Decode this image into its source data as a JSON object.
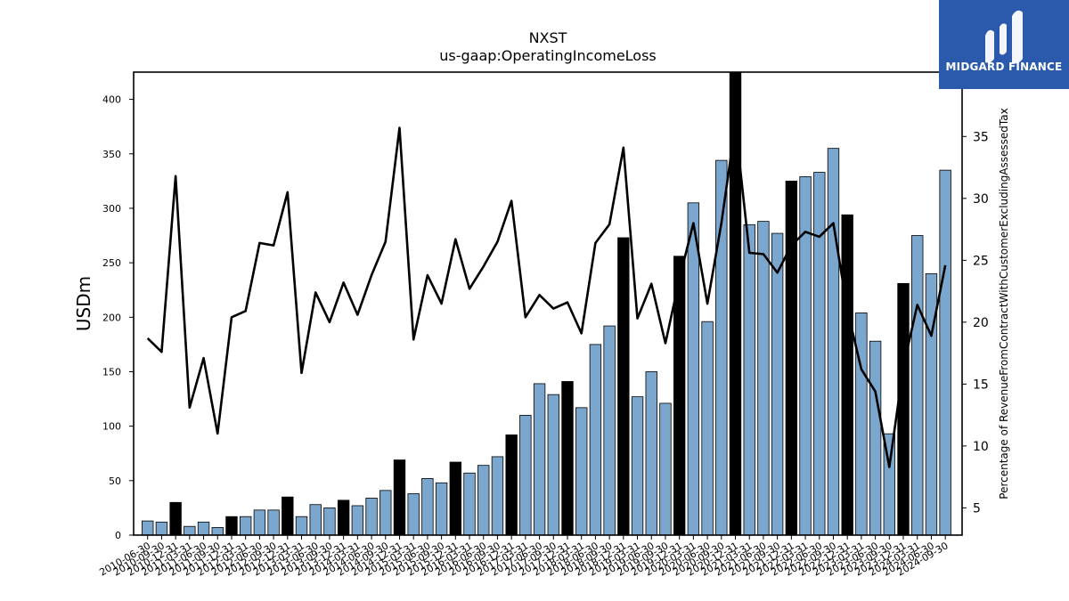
{
  "brand": {
    "name": "MIDGARD FINANCE",
    "bg_color": "#2b5aad"
  },
  "chart_data": {
    "type": "bar",
    "title": "NXST",
    "subtitle": "us-gaap:OperatingIncomeLoss",
    "ylabel": "USDm",
    "y2label": "Percentage of RevenueFromContractWithCustomerExcludingAssessedTax",
    "ylim": [
      0,
      425
    ],
    "y2lim": [
      2.8,
      40.2
    ],
    "yticks": [
      0,
      50,
      100,
      150,
      200,
      250,
      300,
      350,
      400
    ],
    "y2ticks": [
      5,
      10,
      15,
      20,
      25,
      30,
      35
    ],
    "colors": {
      "quarter_bar": "#7ba7cf",
      "annual_bar": "#000000",
      "line": "#000000"
    },
    "categories": [
      "2010-06-30",
      "2010-09-30",
      "2010-12-31",
      "2011-03-31",
      "2011-06-30",
      "2011-09-30",
      "2011-12-31",
      "2012-03-31",
      "2012-06-30",
      "2012-09-30",
      "2012-12-31",
      "2013-03-31",
      "2013-06-30",
      "2013-09-30",
      "2013-12-31",
      "2014-03-31",
      "2014-06-30",
      "2014-09-30",
      "2014-12-31",
      "2015-03-31",
      "2015-06-30",
      "2015-09-30",
      "2015-12-31",
      "2016-03-31",
      "2016-06-30",
      "2016-09-30",
      "2016-12-31",
      "2017-03-31",
      "2017-06-30",
      "2017-09-30",
      "2017-12-31",
      "2018-03-31",
      "2018-06-30",
      "2018-09-30",
      "2018-12-31",
      "2019-03-31",
      "2019-06-30",
      "2019-09-30",
      "2019-12-31",
      "2020-03-31",
      "2020-06-30",
      "2020-09-30",
      "2020-12-31",
      "2021-03-31",
      "2021-06-30",
      "2021-09-30",
      "2021-12-31",
      "2022-03-31",
      "2022-06-30",
      "2022-09-30",
      "2022-12-31",
      "2023-03-31",
      "2023-06-30",
      "2023-09-30",
      "2023-12-31",
      "2024-03-31",
      "2024-06-30",
      "2024-09-30"
    ],
    "series": [
      {
        "name": "",
        "kind": "bar",
        "values": [
          13,
          12,
          30,
          8,
          12,
          7,
          17,
          17,
          23,
          23,
          35,
          17,
          28,
          25,
          32,
          27,
          34,
          41,
          69,
          38,
          52,
          48,
          67,
          57,
          64,
          72,
          92,
          110,
          139,
          129,
          141,
          117,
          175,
          192,
          273,
          127,
          150,
          121,
          256,
          305,
          196,
          344,
          425,
          285,
          288,
          277,
          325,
          329,
          333,
          355,
          294,
          204,
          178,
          93,
          231,
          275,
          240,
          335
        ],
        "annual_flags": [
          0,
          0,
          1,
          0,
          0,
          0,
          1,
          0,
          0,
          0,
          1,
          0,
          0,
          0,
          1,
          0,
          0,
          0,
          1,
          0,
          0,
          0,
          1,
          0,
          0,
          0,
          1,
          0,
          0,
          0,
          1,
          0,
          0,
          0,
          1,
          0,
          0,
          0,
          1,
          0,
          0,
          0,
          1,
          0,
          0,
          0,
          1,
          0,
          0,
          0,
          1,
          0,
          0,
          0,
          1,
          0,
          0,
          0
        ]
      },
      {
        "name": "",
        "kind": "line",
        "axis": "right",
        "values": [
          18.7,
          17.6,
          31.8,
          13.1,
          17.1,
          11.0,
          20.4,
          20.9,
          26.4,
          26.2,
          30.5,
          15.9,
          22.4,
          20.0,
          23.2,
          20.6,
          23.8,
          26.5,
          35.7,
          18.6,
          23.8,
          21.5,
          26.7,
          22.7,
          24.5,
          26.5,
          29.8,
          20.4,
          22.2,
          21.1,
          21.6,
          19.1,
          26.4,
          27.9,
          34.1,
          20.3,
          23.1,
          18.3,
          23.5,
          28.0,
          21.5,
          28.0,
          36.0,
          25.6,
          25.5,
          24.0,
          26.2,
          27.3,
          26.9,
          28.0,
          21.0,
          16.2,
          14.4,
          8.3,
          16.4,
          21.4,
          18.9,
          24.6
        ]
      }
    ],
    "grid": false,
    "legend": "none"
  }
}
